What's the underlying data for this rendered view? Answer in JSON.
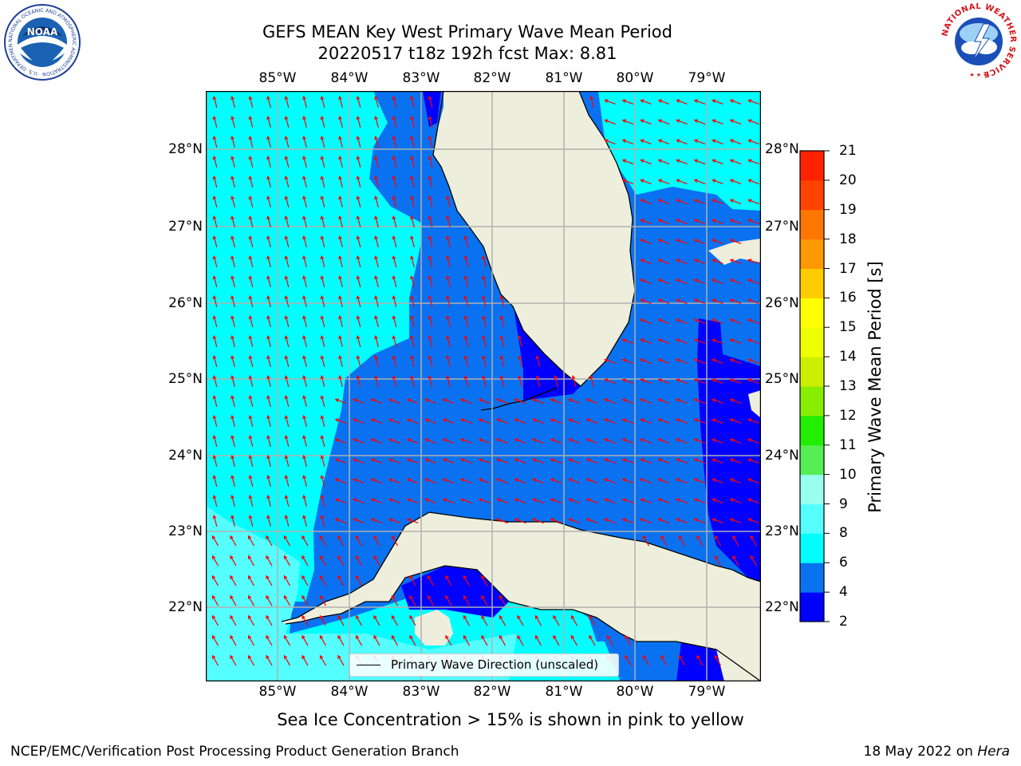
{
  "title_line1": "GEFS MEAN Key West Primary Wave Mean Period",
  "title_line2": "20220517 t18z 192h fcst   Max: 8.81",
  "noaa_logo_text": "NOAA",
  "noaa_ring_text": "NATIONAL OCEANIC AND ATMOSPHERIC ADMINISTRATION · U.S. DEPARTMENT OF COMMERCE",
  "nws_ring_text": "NATIONAL WEATHER SERVICE",
  "longitude_labels": [
    "85°W",
    "84°W",
    "83°W",
    "82°W",
    "81°W",
    "80°W",
    "79°W"
  ],
  "latitude_labels": [
    "28°N",
    "27°N",
    "26°N",
    "25°N",
    "24°N",
    "23°N",
    "22°N"
  ],
  "colorbar": {
    "title": "Primary Wave Mean Period [s]",
    "ticks": [
      "2",
      "4",
      "6",
      "8",
      "9",
      "10",
      "11",
      "12",
      "13",
      "14",
      "15",
      "16",
      "17",
      "18",
      "19",
      "20",
      "21"
    ],
    "colors": [
      "#0000ff",
      "#0a72f0",
      "#00ffff",
      "#55ffff",
      "#99ffee",
      "#55ee55",
      "#22ee00",
      "#88ee00",
      "#ccee00",
      "#eeff00",
      "#ffff00",
      "#ffcc00",
      "#ff9900",
      "#ff7700",
      "#ff4400",
      "#ff2200",
      "#ff0000"
    ]
  },
  "legend_label": "Primary Wave Direction (unscaled)",
  "sea_ice_note": "Sea Ice Concentration > 15% is shown in pink to yellow",
  "footer_left": "NCEP/EMC/Verification Post Processing Product Generation Branch",
  "footer_right_date": "18 May 2022 on",
  "footer_right_host": "Hera",
  "map_colors": {
    "land": "#eeeedc",
    "period_2_4": "#0000ff",
    "period_4_6": "#0a72f0",
    "period_6_8": "#00ffff",
    "period_8_9": "#55ffff",
    "grid": "#b0b0b0",
    "arrow": "#ff0000"
  }
}
